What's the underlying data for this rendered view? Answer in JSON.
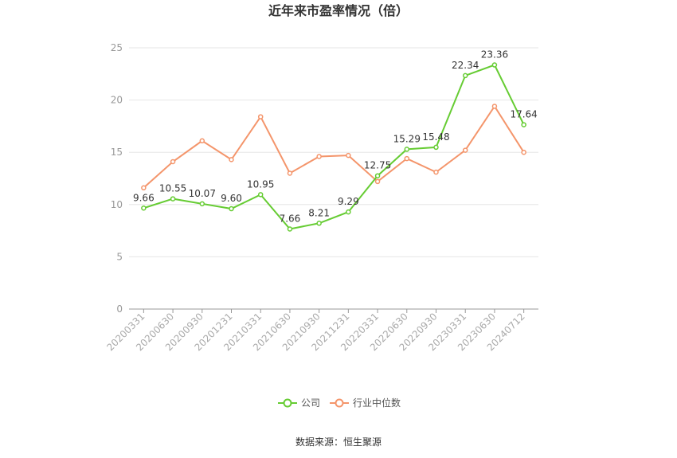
{
  "chart_data": {
    "type": "line",
    "title": "近年来市盈率情况（倍）",
    "source": "数据来源：恒生聚源",
    "categories": [
      "20200331",
      "20200630",
      "20200930",
      "20201231",
      "20210331",
      "20210630",
      "20210930",
      "20211231",
      "20220331",
      "20220630",
      "20220930",
      "20230331",
      "20230630",
      "20240712"
    ],
    "ylim": [
      0,
      25
    ],
    "yticks": [
      0,
      5,
      10,
      15,
      20,
      25
    ],
    "grid": true,
    "legend_position": "bottom",
    "series": [
      {
        "name": "公司",
        "color": "#66cc33",
        "values": [
          9.66,
          10.55,
          10.07,
          9.6,
          10.95,
          7.66,
          8.21,
          9.29,
          12.75,
          15.29,
          15.48,
          22.34,
          23.36,
          17.64
        ],
        "labels": [
          "9.66",
          "10.55",
          "10.07",
          "9.60",
          "10.95",
          "7.66",
          "8.21",
          "9.29",
          "12.75",
          "15.29",
          "15.48",
          "22.34",
          "23.36",
          "17.64"
        ]
      },
      {
        "name": "行业中位数",
        "color": "#f4956b",
        "values": [
          11.6,
          14.1,
          16.1,
          14.3,
          18.4,
          13.0,
          14.6,
          14.7,
          12.2,
          14.4,
          13.1,
          15.2,
          19.4,
          15.0
        ]
      }
    ]
  }
}
